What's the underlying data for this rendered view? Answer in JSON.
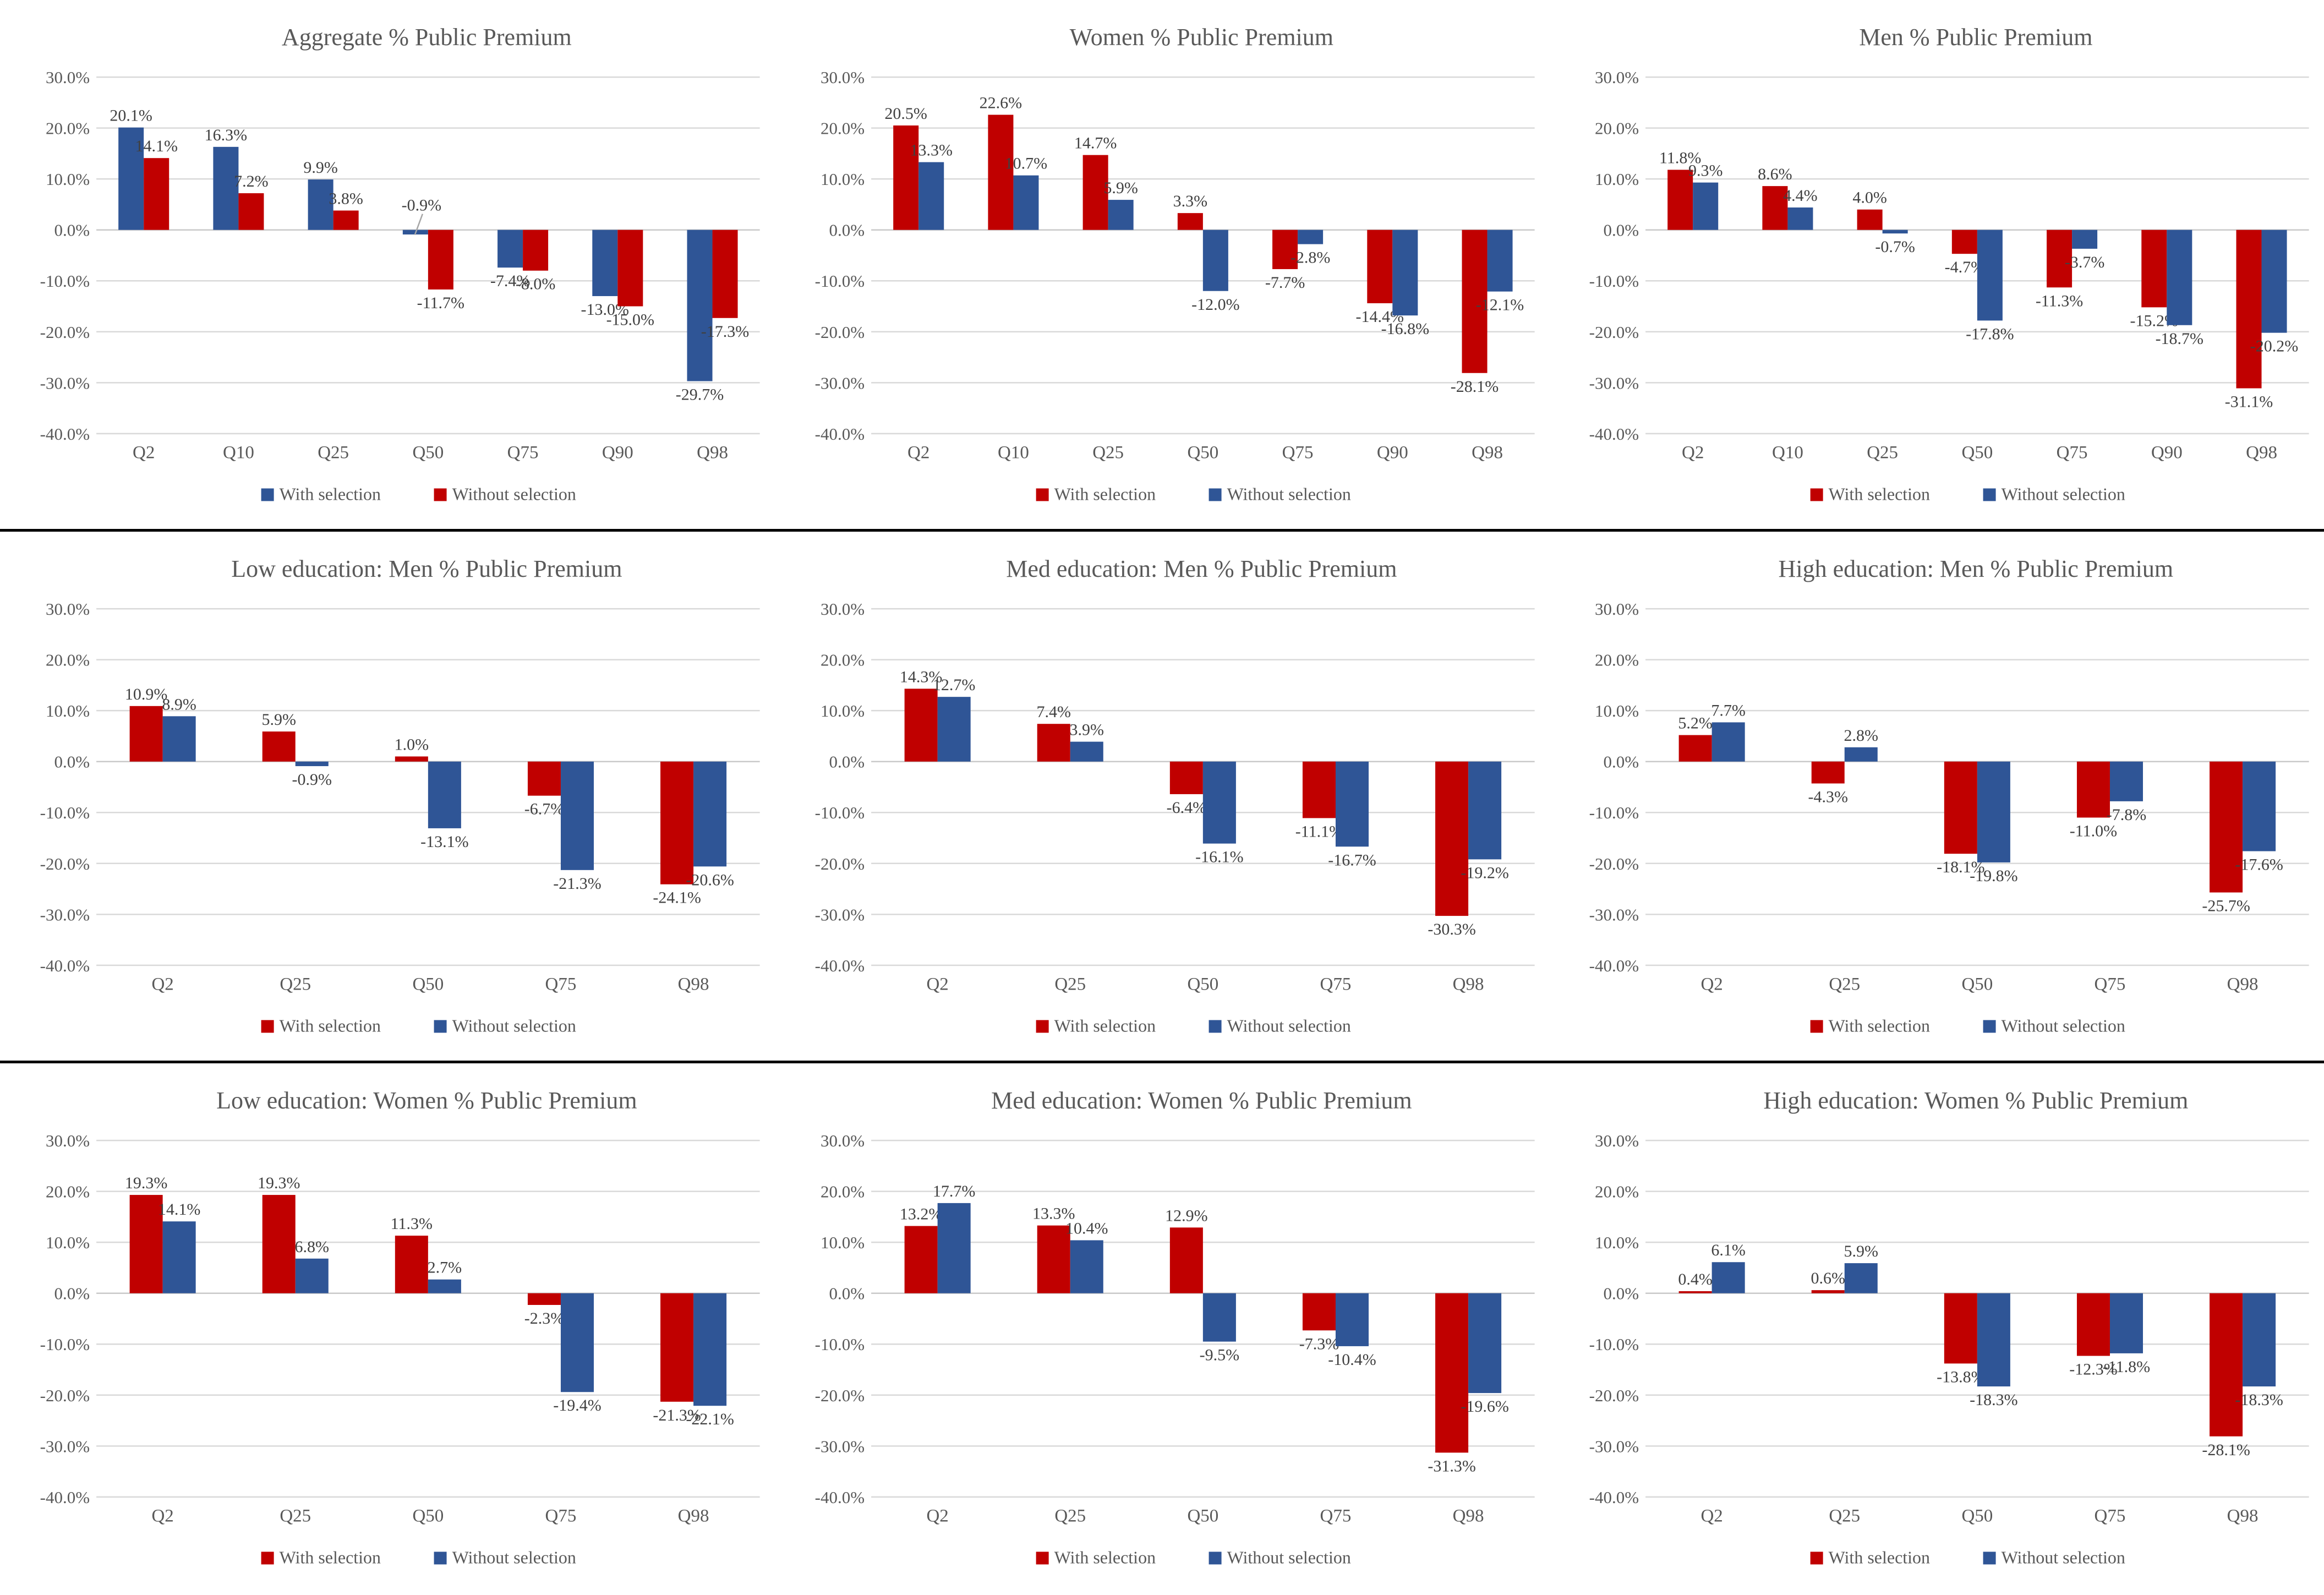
{
  "colors": {
    "red": "#C00000",
    "blue": "#2F5596",
    "grid": "#D9D9D9",
    "zero_line": "#C9C9C9",
    "leader_line": "#A6A6A6",
    "axis_text": "#595959",
    "label_text": "#404040",
    "row_separator": "#000000"
  },
  "axis": {
    "ylim": [
      -40,
      30
    ],
    "step": 10,
    "grid": true,
    "tick_values": [
      30,
      20,
      10,
      0,
      -10,
      -20,
      -30,
      -40
    ],
    "tick_labels": [
      "30.0%",
      "20.0%",
      "10.0%",
      "0.0%",
      "-10.0%",
      "-20.0%",
      "-30.0%",
      "-40.0%"
    ]
  },
  "legend": {
    "position": "bottom",
    "with_label": "With selection",
    "without_label": "Without selection"
  },
  "chart_data": [
    {
      "type": "grouped_bar",
      "title": "Aggregate % Public Premium",
      "categories": [
        "Q2",
        "Q10",
        "Q25",
        "Q50",
        "Q75",
        "Q90",
        "Q98"
      ],
      "series": [
        {
          "name": "With selection",
          "color": "blue",
          "values": [
            20.1,
            16.3,
            9.9,
            -0.9,
            -7.4,
            -13.0,
            -29.7
          ]
        },
        {
          "name": "Without selection",
          "color": "red",
          "values": [
            14.1,
            7.2,
            3.8,
            -11.7,
            -8.0,
            -15.0,
            -17.3
          ]
        }
      ],
      "callout": {
        "series": 0,
        "index": 3,
        "label": "-0.9%"
      }
    },
    {
      "type": "grouped_bar",
      "title": "Women % Public Premium",
      "categories": [
        "Q2",
        "Q10",
        "Q25",
        "Q50",
        "Q75",
        "Q90",
        "Q98"
      ],
      "series": [
        {
          "name": "With selection",
          "color": "red",
          "values": [
            20.5,
            22.6,
            14.7,
            3.3,
            -7.7,
            -14.4,
            -28.1
          ]
        },
        {
          "name": "Without selection",
          "color": "blue",
          "values": [
            13.3,
            10.7,
            5.9,
            -12.0,
            -2.8,
            -16.8,
            -12.1
          ]
        }
      ]
    },
    {
      "type": "grouped_bar",
      "title": "Men % Public Premium",
      "categories": [
        "Q2",
        "Q10",
        "Q25",
        "Q50",
        "Q75",
        "Q90",
        "Q98"
      ],
      "series": [
        {
          "name": "With selection",
          "color": "red",
          "values": [
            11.8,
            8.6,
            4.0,
            -4.7,
            -11.3,
            -15.2,
            -31.1
          ]
        },
        {
          "name": "Without selection",
          "color": "blue",
          "values": [
            9.3,
            4.4,
            -0.7,
            -17.8,
            -3.7,
            -18.7,
            -20.2
          ]
        }
      ]
    },
    {
      "type": "grouped_bar",
      "title": "Low education: Men % Public Premium",
      "categories": [
        "Q2",
        "Q25",
        "Q50",
        "Q75",
        "Q98"
      ],
      "series": [
        {
          "name": "With selection",
          "color": "red",
          "values": [
            10.9,
            5.9,
            1.0,
            -6.7,
            -24.1
          ]
        },
        {
          "name": "Without selection",
          "color": "blue",
          "values": [
            8.9,
            -0.9,
            -13.1,
            -21.3,
            -20.6
          ]
        }
      ]
    },
    {
      "type": "grouped_bar",
      "title": "Med education: Men % Public Premium",
      "categories": [
        "Q2",
        "Q25",
        "Q50",
        "Q75",
        "Q98"
      ],
      "series": [
        {
          "name": "With selection",
          "color": "red",
          "values": [
            14.3,
            7.4,
            -6.4,
            -11.1,
            -30.3
          ]
        },
        {
          "name": "Without selection",
          "color": "blue",
          "values": [
            12.7,
            3.9,
            -16.1,
            -16.7,
            -19.2
          ]
        }
      ]
    },
    {
      "type": "grouped_bar",
      "title": "High education: Men % Public Premium",
      "categories": [
        "Q2",
        "Q25",
        "Q50",
        "Q75",
        "Q98"
      ],
      "series": [
        {
          "name": "With selection",
          "color": "red",
          "values": [
            5.2,
            -4.3,
            -18.1,
            -11.0,
            -25.7
          ]
        },
        {
          "name": "Without selection",
          "color": "blue",
          "values": [
            7.7,
            2.8,
            -19.8,
            -7.8,
            -17.6
          ]
        }
      ]
    },
    {
      "type": "grouped_bar",
      "title": "Low education: Women % Public Premium",
      "categories": [
        "Q2",
        "Q25",
        "Q50",
        "Q75",
        "Q98"
      ],
      "series": [
        {
          "name": "With selection",
          "color": "red",
          "values": [
            19.3,
            19.3,
            11.3,
            -2.3,
            -21.3
          ]
        },
        {
          "name": "Without selection",
          "color": "blue",
          "values": [
            14.1,
            6.8,
            2.7,
            -19.4,
            -22.1
          ]
        }
      ]
    },
    {
      "type": "grouped_bar",
      "title": "Med education: Women % Public Premium",
      "categories": [
        "Q2",
        "Q25",
        "Q50",
        "Q75",
        "Q98"
      ],
      "series": [
        {
          "name": "With selection",
          "color": "red",
          "values": [
            13.2,
            13.3,
            12.9,
            -7.3,
            -31.3
          ]
        },
        {
          "name": "Without selection",
          "color": "blue",
          "values": [
            17.7,
            10.4,
            -9.5,
            -10.4,
            -19.6
          ]
        }
      ]
    },
    {
      "type": "grouped_bar",
      "title": "High education: Women % Public Premium",
      "categories": [
        "Q2",
        "Q25",
        "Q50",
        "Q75",
        "Q98"
      ],
      "series": [
        {
          "name": "With selection",
          "color": "red",
          "values": [
            0.4,
            0.6,
            -13.8,
            -12.3,
            -28.1
          ]
        },
        {
          "name": "Without selection",
          "color": "blue",
          "values": [
            6.1,
            5.9,
            -18.3,
            -11.8,
            -18.3
          ]
        }
      ]
    }
  ]
}
